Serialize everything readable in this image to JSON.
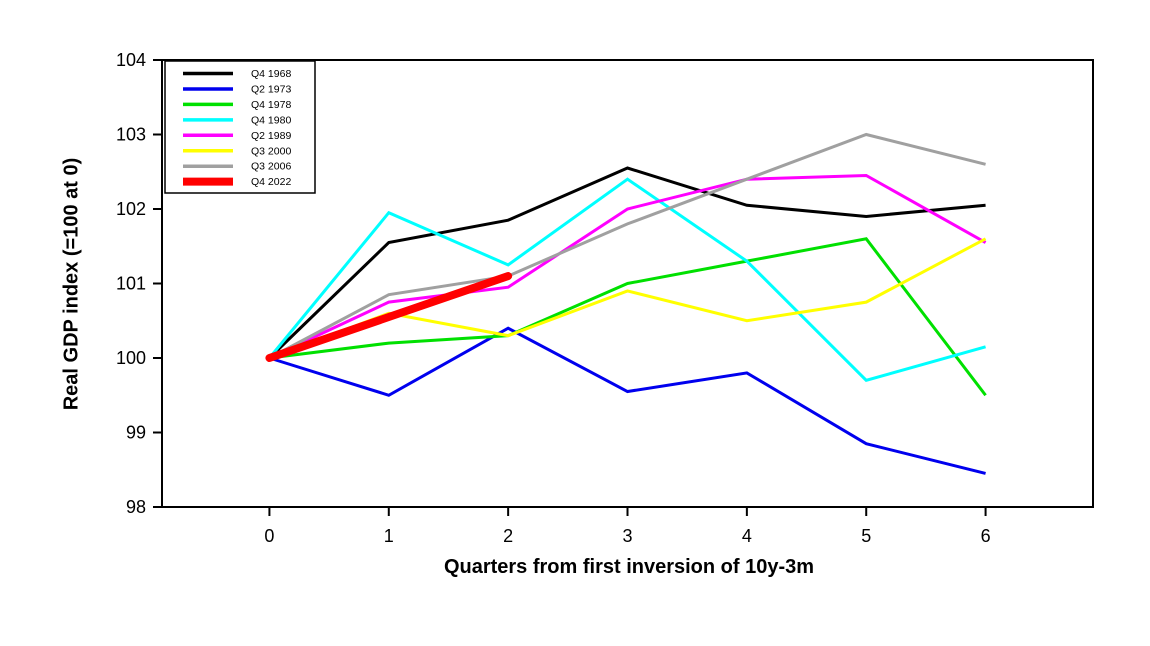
{
  "chart_data": {
    "type": "line",
    "title": "",
    "xlabel": "Quarters from first inversion of 10y-3m",
    "ylabel": "Real GDP index (=100 at 0)",
    "x": [
      0,
      1,
      2,
      3,
      4,
      5,
      6
    ],
    "x_tick_labels": [
      "0",
      "1",
      "2",
      "3",
      "4",
      "5",
      "6"
    ],
    "y_ticks": [
      98,
      99,
      100,
      101,
      102,
      103,
      104
    ],
    "y_tick_labels": [
      "98",
      "99",
      "100",
      "101",
      "102",
      "103",
      "104"
    ],
    "xlim": [
      -0.9,
      6.9
    ],
    "ylim": [
      98,
      104
    ],
    "grid": false,
    "legend_position": "top-left",
    "axis_color": "#000000",
    "background_color": "#ffffff",
    "series": [
      {
        "name": "Q4 1968",
        "color": "#000000",
        "width": 3,
        "values": [
          100,
          101.55,
          101.85,
          102.55,
          102.05,
          101.9,
          102.05
        ]
      },
      {
        "name": "Q2 1973",
        "color": "#0000ee",
        "width": 3,
        "values": [
          100,
          99.5,
          100.4,
          99.55,
          99.8,
          98.85,
          98.45
        ]
      },
      {
        "name": "Q4 1978",
        "color": "#00e000",
        "width": 3,
        "values": [
          100,
          100.2,
          100.3,
          101.0,
          101.3,
          101.6,
          99.5
        ]
      },
      {
        "name": "Q4 1980",
        "color": "#00ffff",
        "width": 3,
        "values": [
          100,
          101.95,
          101.25,
          102.4,
          101.3,
          99.7,
          100.15
        ]
      },
      {
        "name": "Q2 1989",
        "color": "#ff00ff",
        "width": 3,
        "values": [
          100,
          100.75,
          100.95,
          102.0,
          102.4,
          102.45,
          101.55
        ]
      },
      {
        "name": "Q3 2000",
        "color": "#ffff00",
        "width": 3,
        "values": [
          100,
          100.6,
          100.3,
          100.9,
          100.5,
          100.75,
          101.6
        ]
      },
      {
        "name": "Q3 2006",
        "color": "#a0a0a0",
        "width": 3,
        "values": [
          100,
          100.85,
          101.1,
          101.8,
          102.4,
          103.0,
          102.6
        ]
      },
      {
        "name": "Q4 2022",
        "color": "#ff0000",
        "width": 8,
        "values": [
          100,
          100.55,
          101.1,
          null,
          null,
          null,
          null
        ]
      }
    ]
  }
}
